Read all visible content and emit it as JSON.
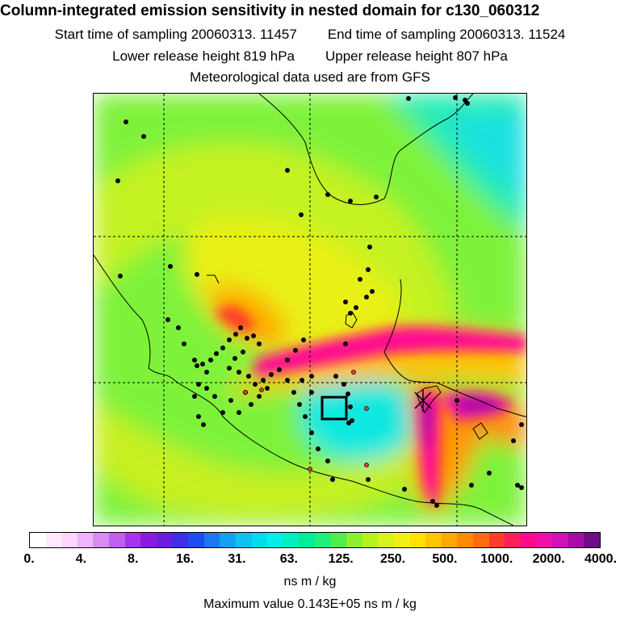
{
  "header": {
    "title": "Column-integrated emission sensitivity in nested domain for c130_060312",
    "start_time": "Start time of sampling 20060313. 11457",
    "end_time": "End time of sampling 20060313. 11524",
    "lower_release": "Lower release height  819 hPa",
    "upper_release": "Upper release height  807 hPa",
    "met_source": "Meteorological data used are from GFS"
  },
  "colorbar": {
    "colors": [
      "#ffffff",
      "#ffe9ff",
      "#ffd4ff",
      "#f0b3ff",
      "#d68cf0",
      "#c060f0",
      "#a733ee",
      "#8a1ae0",
      "#6a1ee0",
      "#3f2ee8",
      "#1e4cf0",
      "#1a78f0",
      "#14a0f0",
      "#10c2f0",
      "#00dcec",
      "#00f0e6",
      "#00f0c0",
      "#00ee99",
      "#20f07a",
      "#50ee4a",
      "#8af030",
      "#b8f21e",
      "#d8f21e",
      "#f0f014",
      "#ffe200",
      "#ffc400",
      "#ffa800",
      "#ff8c00",
      "#ff6a10",
      "#ff3c2a",
      "#ff1e5a",
      "#ff0a90",
      "#ee10a8",
      "#d010b8",
      "#a80ca8",
      "#700a88"
    ],
    "tick_labels": [
      "0.",
      "4.",
      "8.",
      "16.",
      "31.",
      "63.",
      "125.",
      "250.",
      "500.",
      "1000.",
      "2000.",
      "4000."
    ],
    "units": "ns m / kg"
  },
  "footer": {
    "max_value": "Maximum value  0.143E+05 ns m / kg"
  }
}
